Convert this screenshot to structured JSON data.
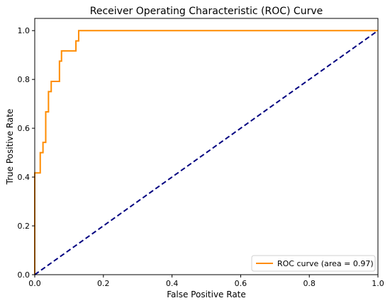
{
  "chart_data": {
    "type": "line",
    "title": "Receiver Operating Characteristic (ROC) Curve",
    "xlabel": "False Positive Rate",
    "ylabel": "True Positive Rate",
    "xlim": [
      0.0,
      1.0
    ],
    "ylim": [
      0.0,
      1.05
    ],
    "xticks": [
      0.0,
      0.2,
      0.4,
      0.6,
      0.8,
      1.0
    ],
    "yticks": [
      0.0,
      0.2,
      0.4,
      0.6,
      0.8,
      1.0
    ],
    "xtick_labels": [
      "0.0",
      "0.2",
      "0.4",
      "0.6",
      "0.8",
      "1.0"
    ],
    "ytick_labels": [
      "0.0",
      "0.2",
      "0.4",
      "0.6",
      "0.8",
      "1.0"
    ],
    "grid": false,
    "legend_position": "lower-right",
    "series": [
      {
        "name": "ROC curve (area = 0.97)",
        "color": "#ff8c00",
        "style": "solid",
        "x": [
          0.0,
          0.0,
          0.0,
          0.016,
          0.016,
          0.024,
          0.024,
          0.032,
          0.032,
          0.04,
          0.04,
          0.048,
          0.048,
          0.056,
          0.064,
          0.072,
          0.072,
          0.078,
          0.078,
          0.092,
          0.12,
          0.12,
          0.128,
          0.128,
          1.0
        ],
        "y": [
          0.0,
          0.417,
          0.417,
          0.417,
          0.5,
          0.5,
          0.542,
          0.542,
          0.667,
          0.667,
          0.75,
          0.75,
          0.792,
          0.792,
          0.792,
          0.792,
          0.875,
          0.875,
          0.917,
          0.917,
          0.917,
          0.958,
          0.958,
          1.0,
          1.0
        ]
      },
      {
        "name": "",
        "color": "#000080",
        "style": "dashed",
        "x": [
          0.0,
          1.0
        ],
        "y": [
          0.0,
          1.0
        ]
      }
    ]
  }
}
